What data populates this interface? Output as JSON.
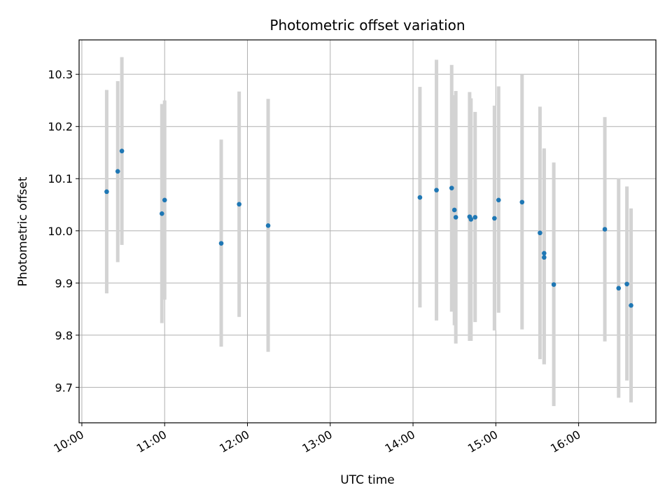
{
  "chart_data": {
    "type": "scatter",
    "title": "Photometric offset variation",
    "xlabel": "UTC time",
    "ylabel": "Photometric offset",
    "x_tick_labels": [
      "10:00",
      "11:00",
      "12:00",
      "13:00",
      "14:00",
      "15:00",
      "16:00"
    ],
    "y_tick_labels": [
      "9.7",
      "9.8",
      "9.9",
      "10.0",
      "10.1",
      "10.2",
      "10.3"
    ],
    "y_ticks": [
      9.7,
      9.8,
      9.9,
      10.0,
      10.1,
      10.2,
      10.3
    ],
    "xlim": [
      "09:58",
      "16:56"
    ],
    "ylim": [
      9.632,
      10.366
    ],
    "grid": true,
    "point_color": "#1f77b4",
    "errorbar_color": "#d3d3d3",
    "series": [
      {
        "points": [
          {
            "x": "10:18",
            "y": 10.075,
            "y_low": 9.88,
            "y_high": 10.27
          },
          {
            "x": "10:26",
            "y": 10.114,
            "y_low": 9.94,
            "y_high": 10.287
          },
          {
            "x": "10:29",
            "y": 10.153,
            "y_low": 9.973,
            "y_high": 10.333
          },
          {
            "x": "10:58",
            "y": 10.033,
            "y_low": 9.823,
            "y_high": 10.243
          },
          {
            "x": "11:00",
            "y": 10.059,
            "y_low": 9.868,
            "y_high": 10.25
          },
          {
            "x": "11:41",
            "y": 9.976,
            "y_low": 9.778,
            "y_high": 10.175
          },
          {
            "x": "11:54",
            "y": 10.051,
            "y_low": 9.835,
            "y_high": 10.267
          },
          {
            "x": "12:15",
            "y": 10.01,
            "y_low": 9.768,
            "y_high": 10.253
          },
          {
            "x": "14:05",
            "y": 10.064,
            "y_low": 9.853,
            "y_high": 10.276
          },
          {
            "x": "14:17",
            "y": 10.078,
            "y_low": 9.828,
            "y_high": 10.328
          },
          {
            "x": "14:28",
            "y": 10.082,
            "y_low": 9.845,
            "y_high": 10.318
          },
          {
            "x": "14:30",
            "y": 10.04,
            "y_low": 9.819,
            "y_high": 10.26
          },
          {
            "x": "14:31",
            "y": 10.026,
            "y_low": 9.784,
            "y_high": 10.268
          },
          {
            "x": "14:41",
            "y": 10.027,
            "y_low": 9.789,
            "y_high": 10.266
          },
          {
            "x": "14:42",
            "y": 10.022,
            "y_low": 9.789,
            "y_high": 10.254
          },
          {
            "x": "14:45",
            "y": 10.026,
            "y_low": 9.825,
            "y_high": 10.228
          },
          {
            "x": "14:59",
            "y": 10.024,
            "y_low": 9.809,
            "y_high": 10.24
          },
          {
            "x": "15:02",
            "y": 10.059,
            "y_low": 9.843,
            "y_high": 10.277
          },
          {
            "x": "15:19",
            "y": 10.055,
            "y_low": 9.811,
            "y_high": 10.299
          },
          {
            "x": "15:32",
            "y": 9.996,
            "y_low": 9.754,
            "y_high": 10.238
          },
          {
            "x": "15:35",
            "y": 9.957,
            "y_low": 9.744,
            "y_high": 10.158
          },
          {
            "x": "15:35",
            "y": 9.949,
            "y_low": 9.744,
            "y_high": 10.155
          },
          {
            "x": "15:42",
            "y": 9.897,
            "y_low": 9.664,
            "y_high": 10.131
          },
          {
            "x": "16:19",
            "y": 10.003,
            "y_low": 9.788,
            "y_high": 10.218
          },
          {
            "x": "16:29",
            "y": 9.89,
            "y_low": 9.68,
            "y_high": 10.101
          },
          {
            "x": "16:35",
            "y": 9.898,
            "y_low": 9.713,
            "y_high": 10.085
          },
          {
            "x": "16:38",
            "y": 9.857,
            "y_low": 9.671,
            "y_high": 10.043
          }
        ]
      }
    ]
  }
}
